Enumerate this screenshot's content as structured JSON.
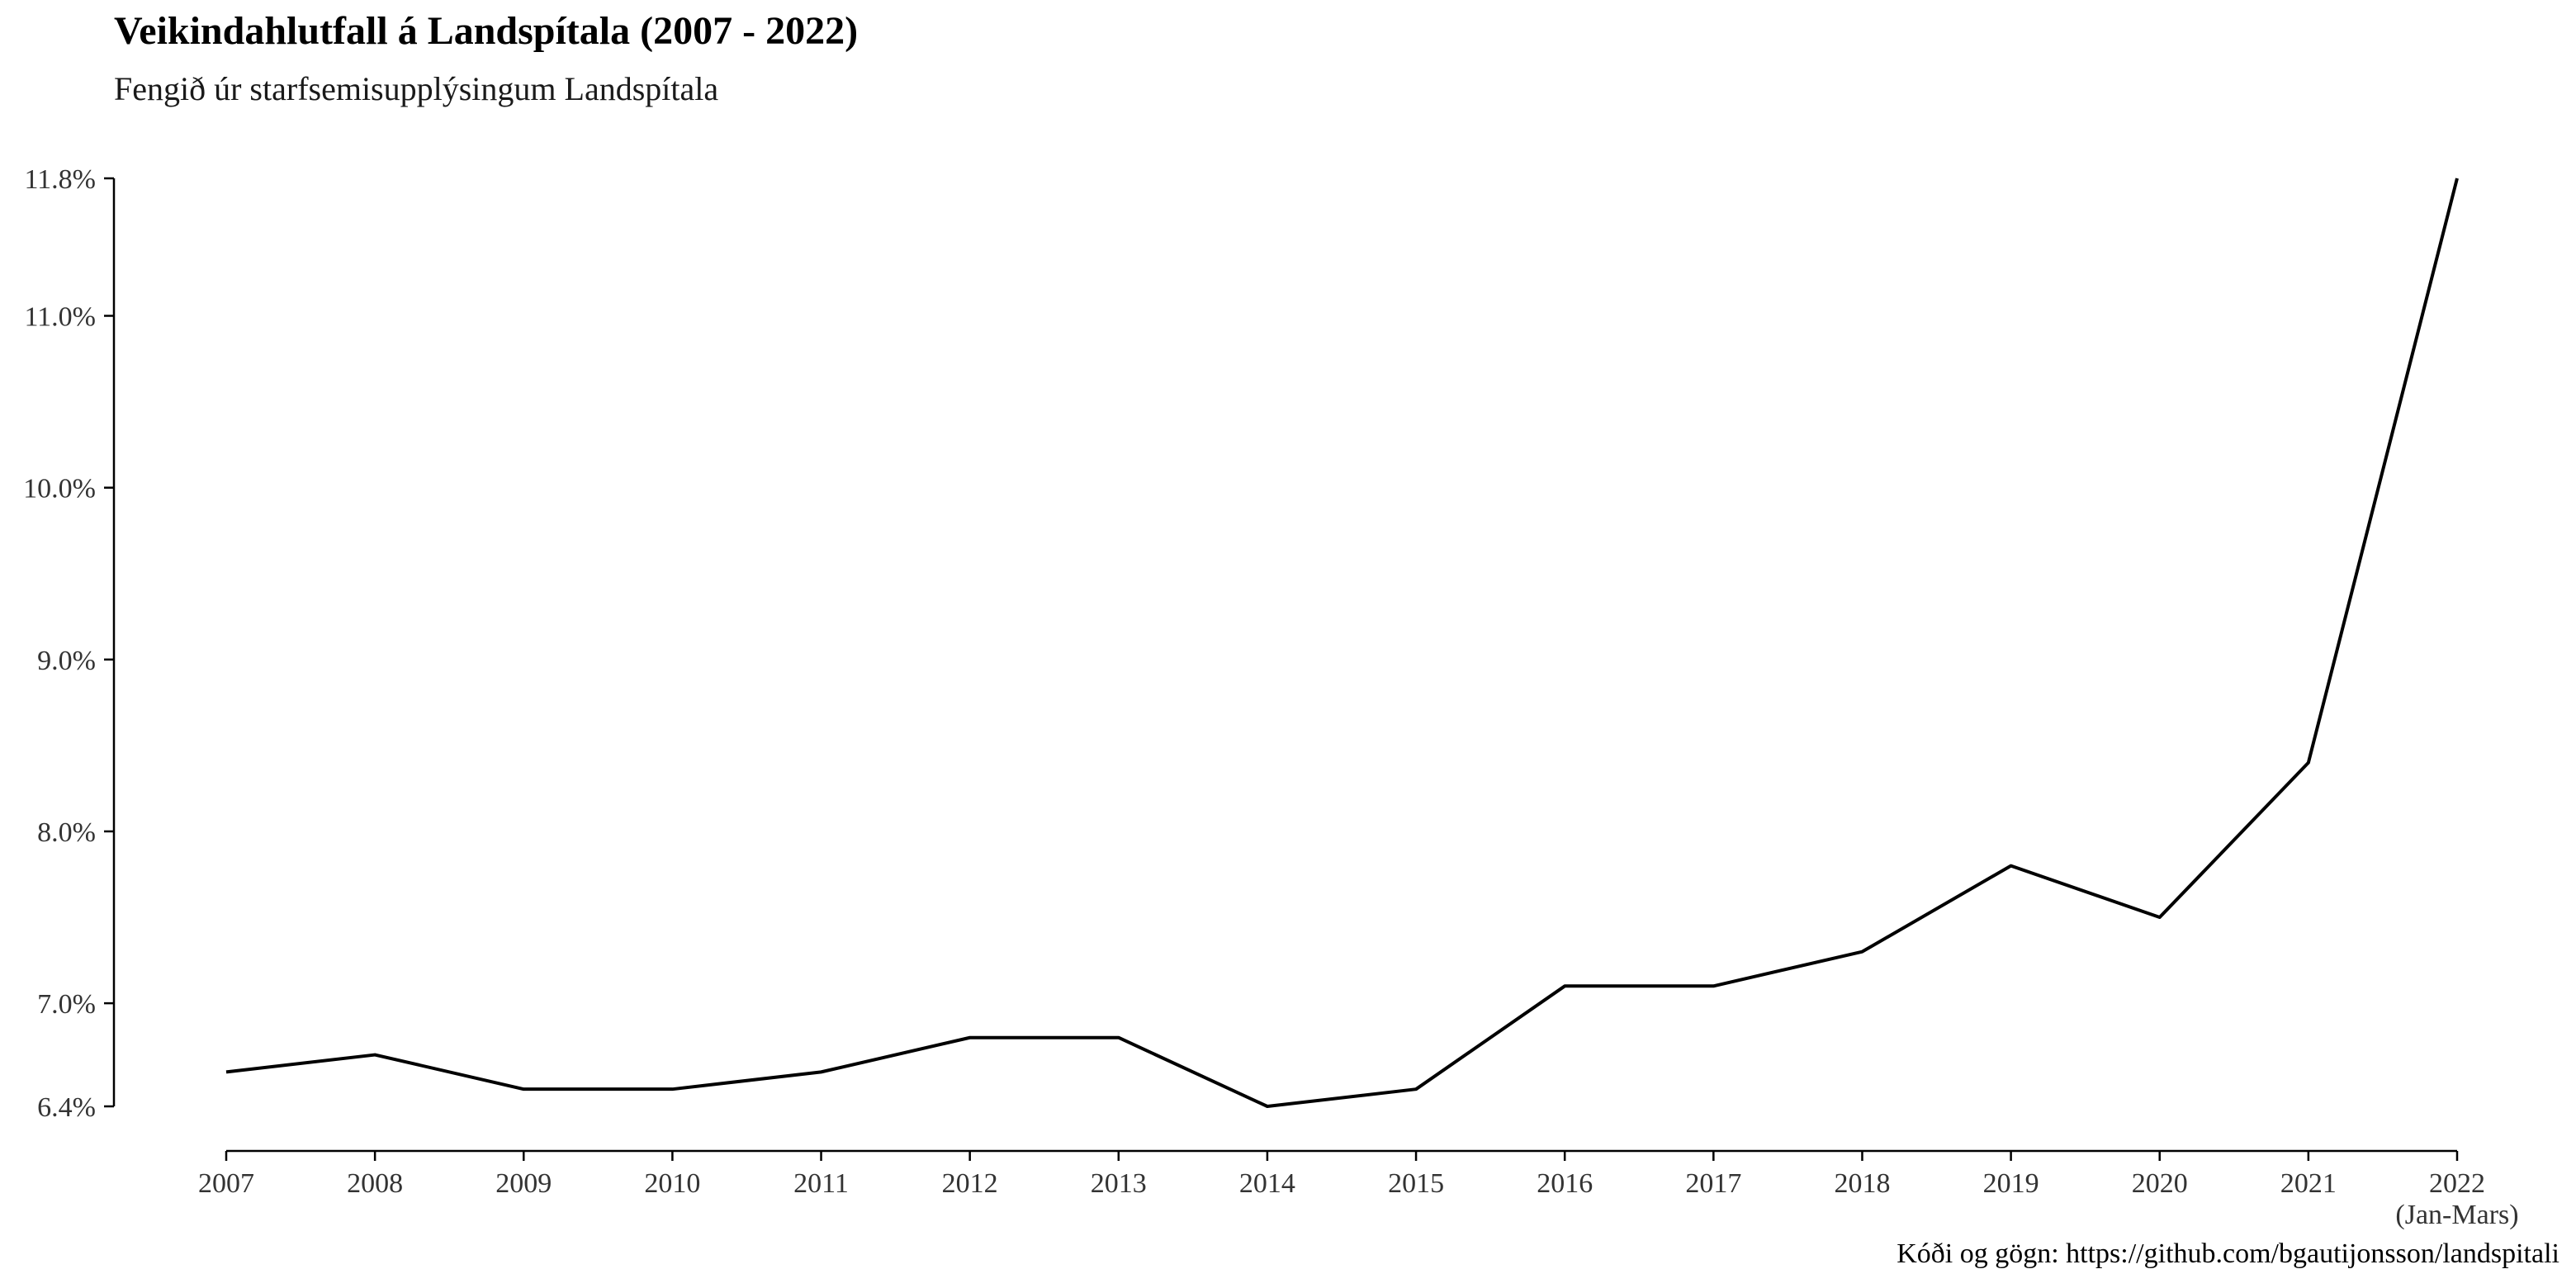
{
  "chart_data": {
    "type": "line",
    "title": "Veikindahlutfall á Landspítala (2007 - 2022)",
    "subtitle": "Fengið úr starfsemisupplýsingum Landspítala",
    "caption": "Kóði og gögn: https://github.com/bgautijonsson/landspitali",
    "xlabel": "",
    "ylabel": "",
    "categories": [
      "2007",
      "2008",
      "2009",
      "2010",
      "2011",
      "2012",
      "2013",
      "2014",
      "2015",
      "2016",
      "2017",
      "2018",
      "2019",
      "2020",
      "2021",
      "2022"
    ],
    "x_tick_sublabels": {
      "2022": "(Jan-Mars)"
    },
    "values": [
      6.6,
      6.7,
      6.5,
      6.5,
      6.6,
      6.8,
      6.8,
      6.4,
      6.5,
      7.1,
      7.1,
      7.3,
      7.8,
      7.5,
      8.4,
      11.8
    ],
    "y_ticks": [
      6.4,
      7.0,
      8.0,
      9.0,
      10.0,
      11.0,
      11.8
    ],
    "y_tick_labels": [
      "6.4%",
      "7.0%",
      "8.0%",
      "9.0%",
      "10.0%",
      "11.0%",
      "11.8%"
    ],
    "ylim": [
      6.4,
      11.8
    ],
    "grid": false,
    "legend": "none",
    "line_color": "#000000"
  }
}
